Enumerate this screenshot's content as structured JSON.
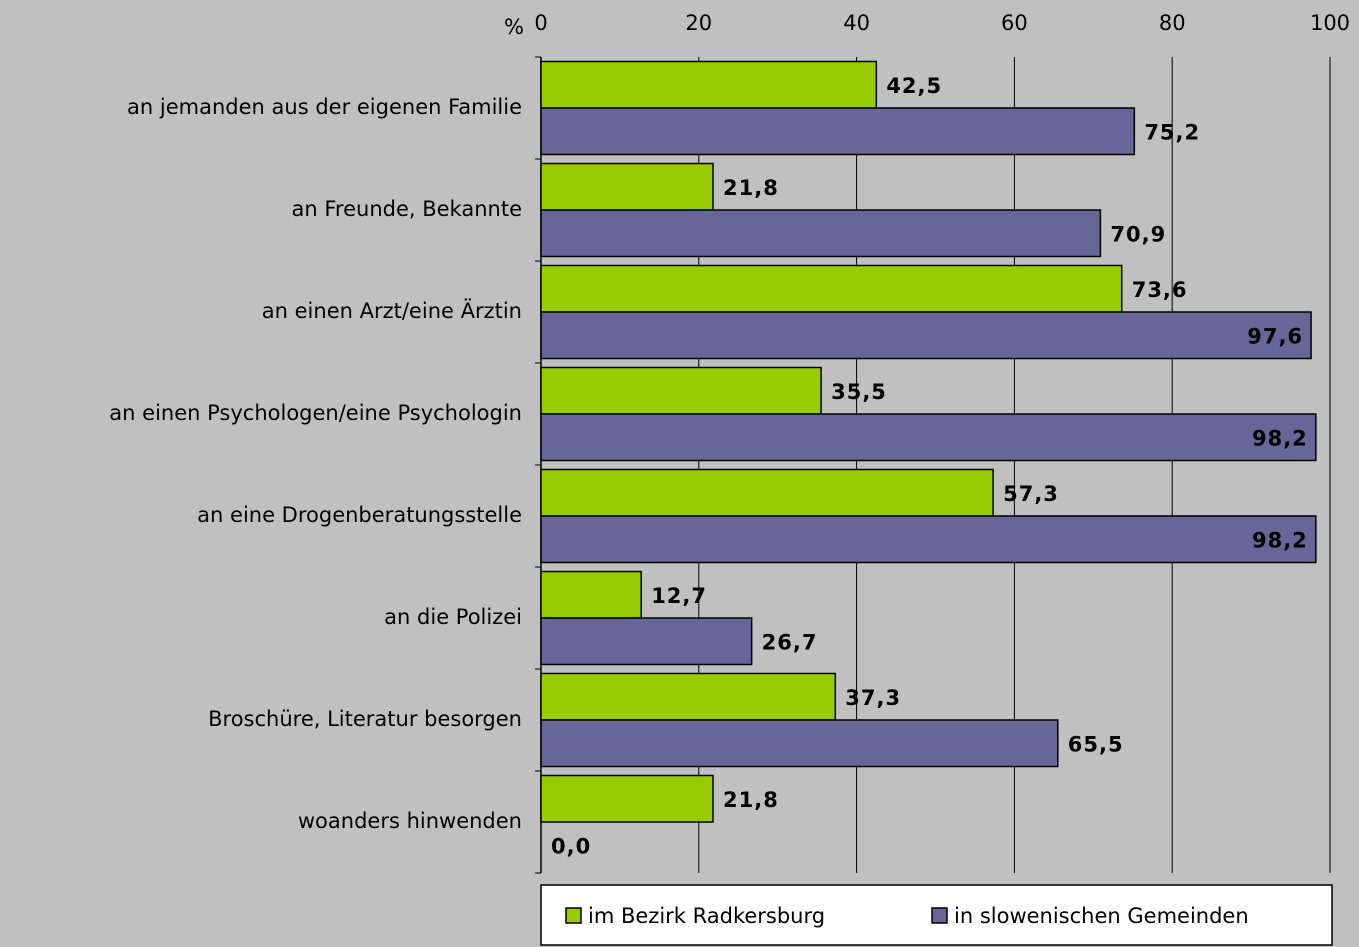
{
  "chart_data": {
    "type": "bar",
    "orientation": "horizontal",
    "x_label": "%",
    "categories": [
      "an jemanden aus der eigenen Familie",
      "an Freunde, Bekannte",
      "an einen Arzt/eine Ärztin",
      "an einen Psychologen/eine Psychologin",
      "an eine Drogenberatungsstelle",
      "an die Polizei",
      "Broschüre, Literatur besorgen",
      "woanders hinwenden"
    ],
    "series": [
      {
        "name": "im Bezirk Radkersburg",
        "color": "#99cc00",
        "values": [
          42.5,
          21.8,
          73.6,
          35.5,
          57.3,
          12.7,
          37.3,
          21.8
        ],
        "value_labels": [
          "42,5",
          "21,8",
          "73,6",
          "35,5",
          "57,3",
          "12,7",
          "37,3",
          "21,8"
        ]
      },
      {
        "name": "in slowenischen Gemeinden",
        "color": "#666699",
        "values": [
          75.2,
          70.9,
          97.6,
          98.2,
          98.2,
          26.7,
          65.5,
          0.0
        ],
        "value_labels": [
          "75,2",
          "70,9",
          "97,6",
          "98,2",
          "98,2",
          "26,7",
          "65,5",
          "0,0"
        ]
      }
    ],
    "xlim": [
      0,
      100
    ],
    "xticks": [
      0,
      20,
      40,
      60,
      80,
      100
    ],
    "grid": true,
    "legend": "bottom"
  }
}
